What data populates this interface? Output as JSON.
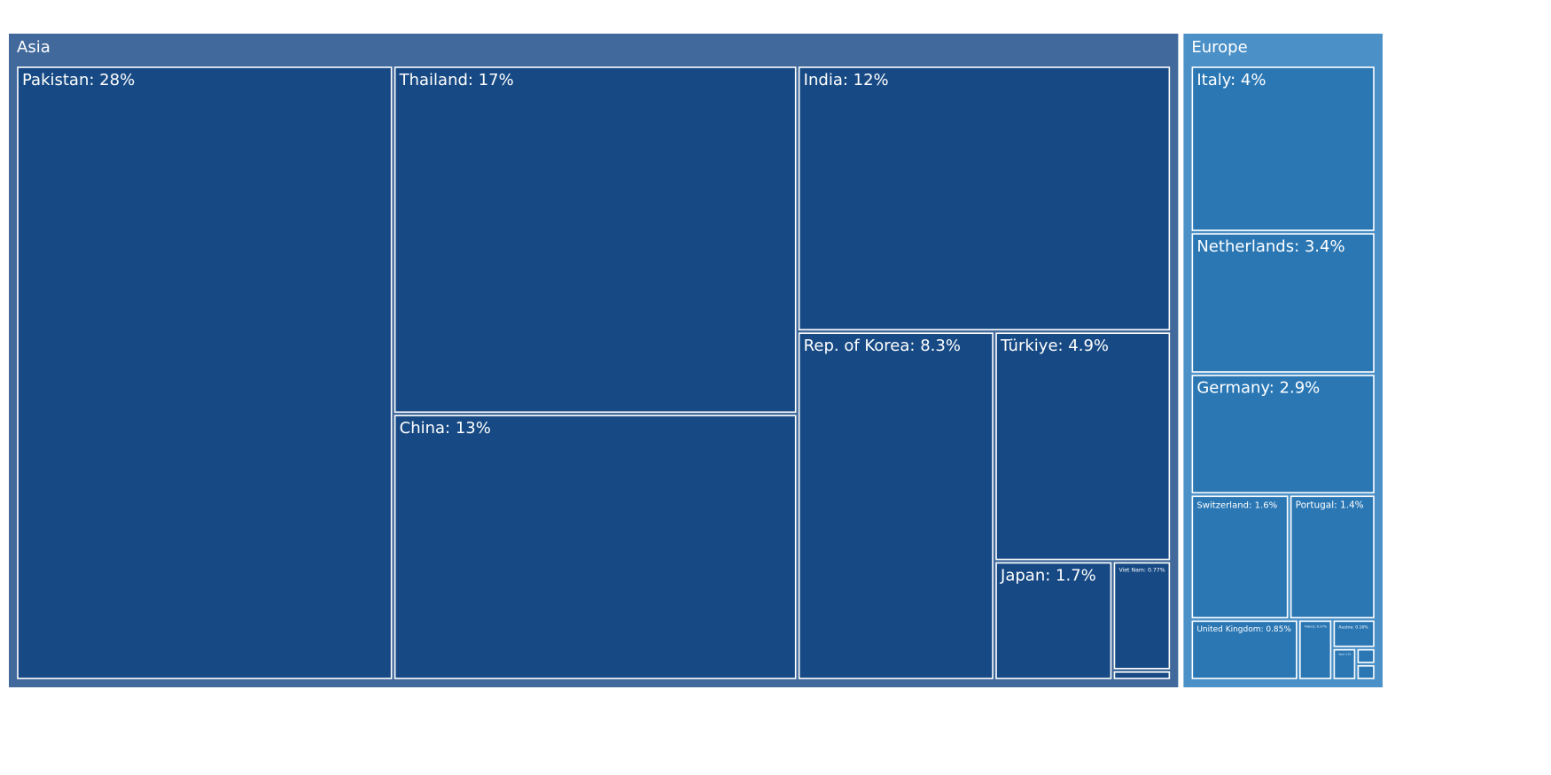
{
  "chart_data": {
    "type": "treemap",
    "groups": [
      {
        "name": "Asia",
        "color": "#174a84",
        "header_color": "#41699b",
        "labels": [
          "Pakistan: 28%",
          "Thailand: 17%",
          "China: 13%",
          "India: 12%",
          "Rep. of Korea: 8.3%",
          "Türkiye: 4.9%",
          "Japan: 1.7%",
          "Viet Nam: 0.77%",
          null
        ],
        "values": [
          28,
          17,
          13,
          12,
          8.3,
          4.9,
          1.7,
          0.77,
          0.07
        ]
      },
      {
        "name": "Europe",
        "color": "#2a77b4",
        "header_color": "#4b91c8",
        "labels": [
          "Italy: 4%",
          "Netherlands: 3.4%",
          "Germany: 2.9%",
          "Switzerland: 1.6%",
          "Portugal: 1.4%",
          "United Kingdom: 0.85%",
          "France: 0.27%",
          "Austria: 0.16%",
          "Spain: 0.1%",
          null,
          null
        ],
        "values": [
          4,
          3.4,
          2.9,
          1.6,
          1.4,
          0.85,
          0.27,
          0.16,
          0.1,
          0.04,
          0.04
        ]
      }
    ]
  }
}
